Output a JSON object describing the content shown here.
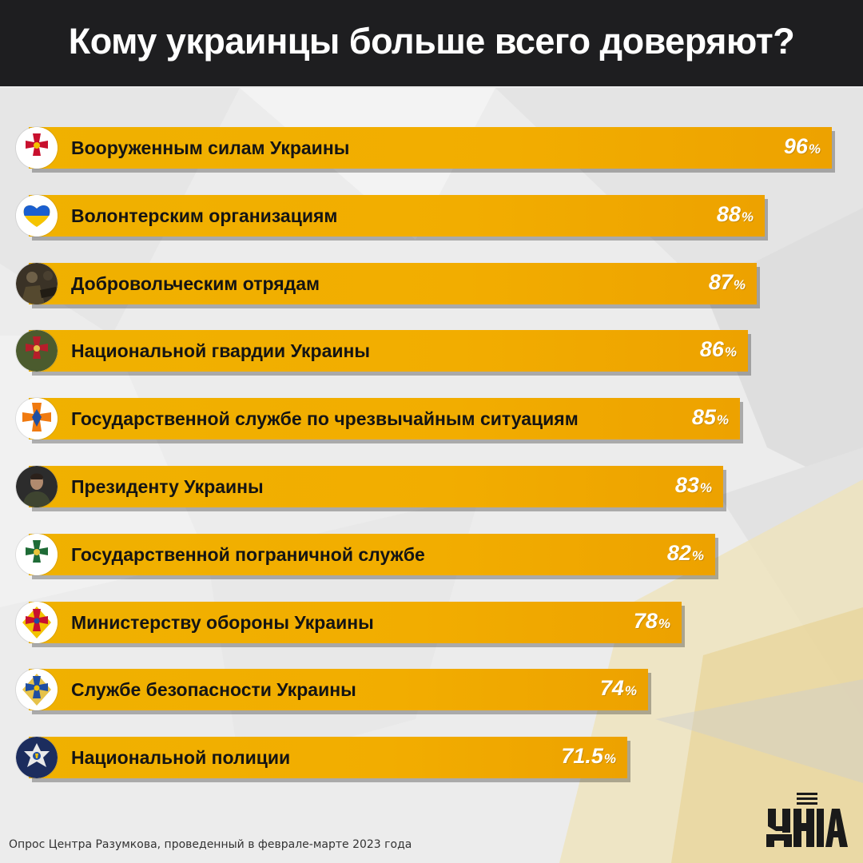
{
  "title": "Кому украинцы больше всего доверяют?",
  "footer": "Опрос Центра Разумкова, проведенный в феврале-марте 2023 года",
  "logo_text": "УНІАН",
  "colors": {
    "bar": "#f0b100",
    "header": "#1e1e20",
    "text": "#141414",
    "value": "#ffffff"
  },
  "chart_data": {
    "type": "bar",
    "orientation": "horizontal",
    "categories": [
      "Вооруженным силам Украины",
      "Волонтерским организациям",
      "Добровольческим отрядам",
      "Национальной гвардии Украины",
      "Государственной службе по чрезвычайным ситуациям",
      "Президенту Украины",
      "Государственной пограничной службе",
      "Министерству обороны Украины",
      "Службе безопасности Украины",
      "Национальной полиции"
    ],
    "values": [
      96,
      88,
      87,
      86,
      85,
      83,
      82,
      78,
      74,
      71.5
    ],
    "value_labels": [
      "96",
      "88",
      "87",
      "86",
      "85",
      "83",
      "82",
      "78",
      "74",
      "71.5"
    ],
    "unit": "%",
    "icons": [
      "armed-forces-emblem-icon",
      "heart-flag-icon",
      "volunteer-photo-icon",
      "national-guard-emblem-icon",
      "emergency-service-emblem-icon",
      "president-photo-icon",
      "border-guard-emblem-icon",
      "defense-ministry-emblem-icon",
      "security-service-emblem-icon",
      "police-emblem-icon"
    ],
    "title": "Кому украинцы больше всего доверяют?",
    "xlabel": "",
    "ylabel": "",
    "grid": false,
    "legend": "none"
  }
}
